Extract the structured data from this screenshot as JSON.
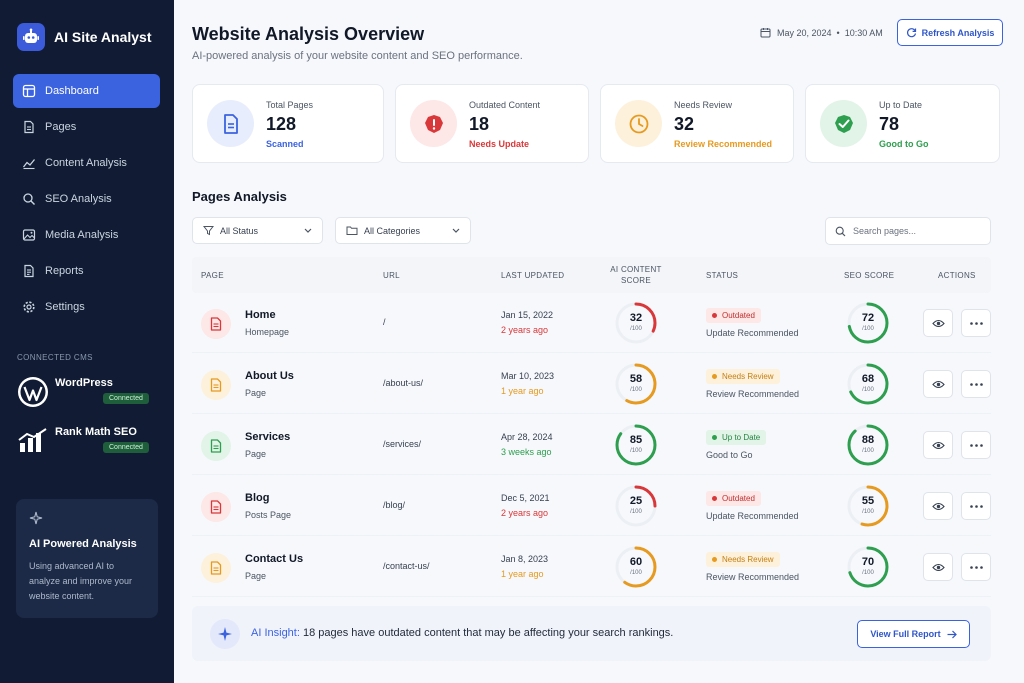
{
  "app": {
    "title": "AI Site Analyst"
  },
  "sidebar": {
    "items": [
      {
        "label": "Dashboard",
        "icon": "dashboard-icon",
        "active": true
      },
      {
        "label": "Pages",
        "icon": "file-icon"
      },
      {
        "label": "Content Analysis",
        "icon": "chart-line-icon"
      },
      {
        "label": "SEO Analysis",
        "icon": "search-icon"
      },
      {
        "label": "Media Analysis",
        "icon": "image-icon"
      },
      {
        "label": "Reports",
        "icon": "report-icon"
      },
      {
        "label": "Settings",
        "icon": "gear-icon"
      }
    ],
    "cms_title": "CONNECTED CMS",
    "cms": [
      {
        "name": "WordPress",
        "status": "Connected",
        "icon": "wordpress-icon"
      },
      {
        "name": "Rank Math SEO",
        "status": "Connected",
        "icon": "rank-math-icon"
      }
    ],
    "ai_card": {
      "title": "AI Powered Analysis",
      "text": "Using advanced AI to analyze and improve your website content.",
      "icon": "sparkle-icon"
    }
  },
  "header": {
    "title": "Website Analysis Overview",
    "subtitle": "AI-powered analysis of your website content and SEO performance.",
    "date": "May 20, 2024",
    "separator": "•",
    "time": "10:30 AM",
    "refresh_label": "Refresh Analysis"
  },
  "stats": [
    {
      "label": "Total Pages",
      "value": "128",
      "sub": "Scanned",
      "color": "#3b63e0",
      "bg": "#e7edfc",
      "icon": "document-icon"
    },
    {
      "label": "Outdated Content",
      "value": "18",
      "sub": "Needs Update",
      "color": "#d9383a",
      "bg": "#fde7e7",
      "icon": "alert-icon"
    },
    {
      "label": "Needs Review",
      "value": "32",
      "sub": "Review Recommended",
      "color": "#e69a1f",
      "bg": "#fdf1dc",
      "icon": "clock-icon"
    },
    {
      "label": "Up to Date",
      "value": "78",
      "sub": "Good to Go",
      "color": "#2e9e4f",
      "bg": "#e1f4e7",
      "icon": "check-icon"
    }
  ],
  "pages_panel": {
    "title": "Pages Analysis",
    "filters": [
      {
        "label": "All Status",
        "icon": "filter-icon"
      },
      {
        "label": "All Categories",
        "icon": "folder-icon"
      }
    ],
    "search_placeholder": "Search pages...",
    "columns": {
      "page": "PAGE",
      "url": "URL",
      "updated": "LAST UPDATED",
      "ai_score": "AI CONTENT SCORE",
      "status": "STATUS",
      "seo": "SEO SCORE",
      "actions": "ACTIONS"
    },
    "rows": [
      {
        "name": "Home",
        "type": "Homepage",
        "url": "/",
        "date": "Jan 15, 2022",
        "relative": "2 years ago",
        "ai_score": 32,
        "status": "Outdated",
        "status_note": "Update Recommended",
        "seo_score": 72,
        "tone": "red"
      },
      {
        "name": "About Us",
        "type": "Page",
        "url": "/about-us/",
        "date": "Mar 10, 2023",
        "relative": "1 year ago",
        "ai_score": 58,
        "status": "Needs Review",
        "status_note": "Review Recommended",
        "seo_score": 68,
        "tone": "orange"
      },
      {
        "name": "Services",
        "type": "Page",
        "url": "/services/",
        "date": "Apr 28, 2024",
        "relative": "3 weeks ago",
        "ai_score": 85,
        "status": "Up to Date",
        "status_note": "Good to Go",
        "seo_score": 88,
        "tone": "green"
      },
      {
        "name": "Blog",
        "type": "Posts Page",
        "url": "/blog/",
        "date": "Dec 5, 2021",
        "relative": "2 years ago",
        "ai_score": 25,
        "status": "Outdated",
        "status_note": "Update Recommended",
        "seo_score": 55,
        "tone": "red"
      },
      {
        "name": "Contact Us",
        "type": "Page",
        "url": "/contact-us/",
        "date": "Jan 8, 2023",
        "relative": "1 year ago",
        "ai_score": 60,
        "status": "Needs Review",
        "status_note": "Review Recommended",
        "seo_score": 70,
        "tone": "orange"
      }
    ],
    "score_max": "/100"
  },
  "insight": {
    "label": "AI Insight:",
    "text": "18 pages have outdated content that may be affecting your search rankings.",
    "button": "View Full Report"
  },
  "colors": {
    "accent": "#3b63e0",
    "red": "#d9383a",
    "orange": "#e69a1f",
    "green": "#2e9e4f",
    "sidebar_bg": "#111c34"
  }
}
